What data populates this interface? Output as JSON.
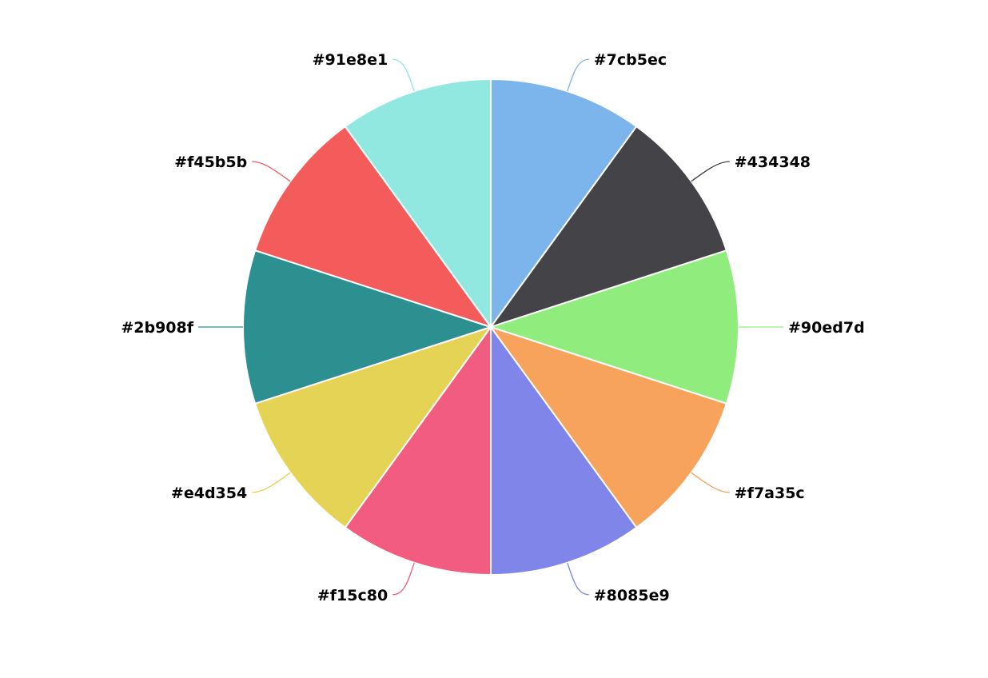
{
  "chart_data": {
    "type": "pie",
    "title": "",
    "slices": [
      {
        "label": "#7cb5ec",
        "value": 1,
        "color": "#7cb5ec"
      },
      {
        "label": "#434348",
        "value": 1,
        "color": "#434348"
      },
      {
        "label": "#90ed7d",
        "value": 1,
        "color": "#90ed7d"
      },
      {
        "label": "#f7a35c",
        "value": 1,
        "color": "#f7a35c"
      },
      {
        "label": "#8085e9",
        "value": 1,
        "color": "#8085e9"
      },
      {
        "label": "#f15c80",
        "value": 1,
        "color": "#f15c80"
      },
      {
        "label": "#e4d354",
        "value": 1,
        "color": "#e4d354"
      },
      {
        "label": "#2b908f",
        "value": 1,
        "color": "#2b908f"
      },
      {
        "label": "#f45b5b",
        "value": 1,
        "color": "#f45b5b"
      },
      {
        "label": "#91e8e1",
        "value": 1,
        "color": "#91e8e1"
      }
    ],
    "legend": false
  }
}
